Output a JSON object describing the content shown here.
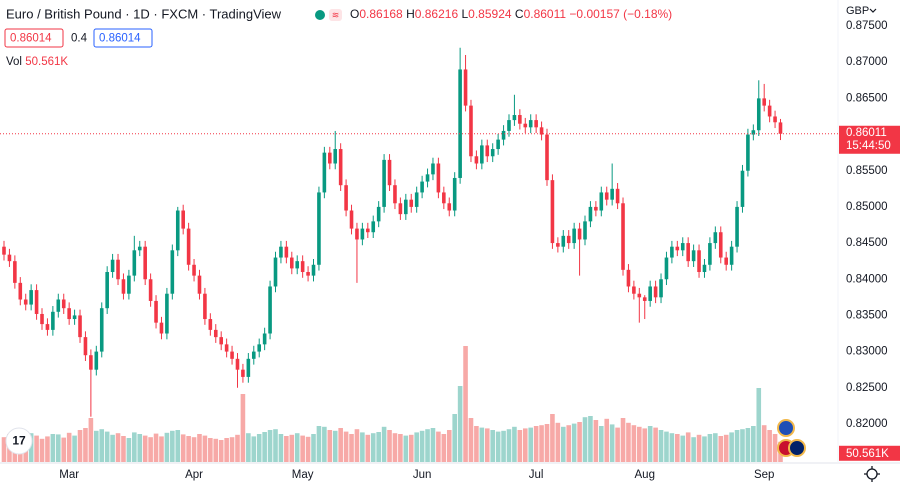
{
  "chart_data": {
    "type": "candlestick",
    "symbol_title": "Euro / British Pound · 1D · FXCM · TradingView",
    "ohlc_labels": [
      "O",
      "H",
      "L",
      "C"
    ],
    "change_label": "−0.00157 (−0.18%)",
    "indicator_values": [
      "0.86014",
      "0.4",
      "0.86014"
    ],
    "volume_name": "Vol",
    "last_volume_label": "50.561K",
    "currency": "GBP",
    "countdown": "15:44:50",
    "up_color": "#089981",
    "down_color": "#f23645",
    "volume_up_color": "#9dd5cd",
    "volume_down_color": "#f7a9a7",
    "grid": false,
    "ylim": [
      0.8146,
      0.8786
    ],
    "yticks": [
      {
        "value": 0.875,
        "label": "0.87500"
      },
      {
        "value": 0.87,
        "label": "0.87000"
      },
      {
        "value": 0.865,
        "label": "0.86500"
      },
      {
        "value": 0.86,
        "label": "0.86000"
      },
      {
        "value": 0.855,
        "label": "0.85500"
      },
      {
        "value": 0.85,
        "label": "0.85000"
      },
      {
        "value": 0.845,
        "label": "0.84500"
      },
      {
        "value": 0.84,
        "label": "0.84000"
      },
      {
        "value": 0.835,
        "label": "0.83500"
      },
      {
        "value": 0.83,
        "label": "0.83000"
      },
      {
        "value": 0.825,
        "label": "0.82500"
      },
      {
        "value": 0.82,
        "label": "0.82000"
      }
    ],
    "volume_ylim": [
      0,
      300000
    ],
    "categories": [
      null,
      null,
      null,
      null,
      null,
      null,
      null,
      null,
      null,
      null,
      null,
      null,
      "Mar",
      null,
      null,
      null,
      null,
      null,
      null,
      null,
      null,
      null,
      null,
      null,
      null,
      null,
      null,
      null,
      null,
      null,
      null,
      null,
      null,
      null,
      null,
      "Apr",
      null,
      null,
      null,
      null,
      null,
      null,
      null,
      null,
      null,
      null,
      null,
      null,
      null,
      null,
      null,
      null,
      null,
      null,
      null,
      "May",
      null,
      null,
      null,
      null,
      null,
      null,
      null,
      null,
      null,
      null,
      null,
      null,
      null,
      null,
      null,
      null,
      null,
      null,
      null,
      null,
      null,
      "Jun",
      null,
      null,
      null,
      null,
      null,
      null,
      null,
      null,
      null,
      null,
      null,
      null,
      null,
      null,
      null,
      null,
      null,
      null,
      null,
      null,
      "Jul",
      null,
      null,
      null,
      null,
      null,
      null,
      null,
      null,
      null,
      null,
      null,
      null,
      null,
      null,
      null,
      null,
      null,
      null,
      null,
      "Aug",
      null,
      null,
      null,
      null,
      null,
      null,
      null,
      null,
      null,
      null,
      null,
      null,
      null,
      null,
      null,
      null,
      null,
      null,
      null,
      null,
      null,
      "Sep",
      null,
      null,
      null
    ],
    "open": [
      0.8445,
      0.8434,
      0.8425,
      0.8395,
      0.8372,
      0.8365,
      0.8385,
      0.8352,
      0.8338,
      0.833,
      0.8355,
      0.8372,
      0.836,
      0.8345,
      0.835,
      0.832,
      0.8295,
      0.8275,
      0.83,
      0.836,
      0.841,
      0.8427,
      0.84,
      0.838,
      0.8405,
      0.844,
      0.8445,
      0.84,
      0.837,
      0.834,
      0.8325,
      0.838,
      0.844,
      0.8495,
      0.847,
      0.842,
      0.8405,
      0.838,
      0.8345,
      0.833,
      0.832,
      0.831,
      0.83,
      0.829,
      0.8275,
      0.8265,
      0.829,
      0.83,
      0.831,
      0.8325,
      0.839,
      0.843,
      0.8445,
      0.843,
      0.8415,
      0.8425,
      0.841,
      0.8405,
      0.842,
      0.852,
      0.8575,
      0.856,
      0.858,
      0.853,
      0.8495,
      0.847,
      0.8455,
      0.847,
      0.8465,
      0.848,
      0.85,
      0.8565,
      0.853,
      0.8505,
      0.849,
      0.851,
      0.85,
      0.852,
      0.8535,
      0.8545,
      0.856,
      0.852,
      0.8505,
      0.8495,
      0.854,
      0.869,
      0.864,
      0.857,
      0.856,
      0.8585,
      0.857,
      0.858,
      0.8593,
      0.8605,
      0.862,
      0.8627,
      0.8615,
      0.861,
      0.862,
      0.861,
      0.86,
      0.8537,
      0.845,
      0.8445,
      0.846,
      0.845,
      0.847,
      0.8455,
      0.848,
      0.85,
      0.8495,
      0.852,
      0.851,
      0.8525,
      0.8505,
      0.8413,
      0.839,
      0.838,
      0.8375,
      0.837,
      0.839,
      0.8375,
      0.84,
      0.843,
      0.8445,
      0.844,
      0.845,
      0.8425,
      0.844,
      0.841,
      0.842,
      0.845,
      0.8465,
      0.843,
      0.842,
      0.8445,
      0.85,
      0.855,
      0.86,
      0.8606,
      0.865,
      0.864,
      0.8625,
      0.86168
    ],
    "high": [
      0.8453,
      0.8442,
      0.8433,
      0.8403,
      0.838,
      0.8393,
      0.8393,
      0.836,
      0.8346,
      0.8363,
      0.838,
      0.838,
      0.8368,
      0.8358,
      0.8358,
      0.8328,
      0.8303,
      0.8308,
      0.8368,
      0.8418,
      0.8435,
      0.8435,
      0.8408,
      0.8413,
      0.846,
      0.8453,
      0.8453,
      0.8408,
      0.8378,
      0.8348,
      0.8388,
      0.8448,
      0.85,
      0.8503,
      0.8478,
      0.8428,
      0.8413,
      0.8388,
      0.8353,
      0.8338,
      0.8328,
      0.8318,
      0.8308,
      0.8298,
      0.8283,
      0.8298,
      0.8308,
      0.8318,
      0.8333,
      0.8398,
      0.8438,
      0.8453,
      0.8453,
      0.8438,
      0.8433,
      0.8433,
      0.8418,
      0.8428,
      0.8528,
      0.8583,
      0.8583,
      0.8605,
      0.8588,
      0.8538,
      0.8503,
      0.8478,
      0.8478,
      0.8478,
      0.8488,
      0.8508,
      0.8573,
      0.8573,
      0.8538,
      0.8513,
      0.8518,
      0.8518,
      0.8528,
      0.8543,
      0.8553,
      0.8568,
      0.8568,
      0.8528,
      0.8513,
      0.8548,
      0.872,
      0.871,
      0.8648,
      0.8578,
      0.8593,
      0.8593,
      0.8588,
      0.8601,
      0.8613,
      0.8628,
      0.8655,
      0.8635,
      0.8623,
      0.8628,
      0.8628,
      0.8618,
      0.8608,
      0.8545,
      0.8458,
      0.8468,
      0.8468,
      0.8478,
      0.8478,
      0.8488,
      0.8508,
      0.8508,
      0.8528,
      0.8528,
      0.856,
      0.8533,
      0.8513,
      0.8421,
      0.8398,
      0.8388,
      0.8378,
      0.8398,
      0.8398,
      0.8408,
      0.8438,
      0.8453,
      0.8453,
      0.8458,
      0.8458,
      0.8448,
      0.8448,
      0.8428,
      0.8458,
      0.8473,
      0.8473,
      0.8438,
      0.8453,
      0.8508,
      0.8558,
      0.8608,
      0.8614,
      0.8675,
      0.867,
      0.8648,
      0.8633,
      0.86216
    ],
    "low": [
      0.8426,
      0.8417,
      0.8387,
      0.8364,
      0.8357,
      0.8357,
      0.8344,
      0.833,
      0.8322,
      0.8322,
      0.8347,
      0.8352,
      0.8337,
      0.8337,
      0.8312,
      0.8287,
      0.821,
      0.8267,
      0.8292,
      0.8352,
      0.8402,
      0.8392,
      0.8372,
      0.8372,
      0.8397,
      0.8432,
      0.8392,
      0.8362,
      0.8332,
      0.8317,
      0.8317,
      0.8372,
      0.8432,
      0.8462,
      0.8412,
      0.8397,
      0.8372,
      0.8337,
      0.8322,
      0.8312,
      0.8302,
      0.8292,
      0.8282,
      0.825,
      0.8257,
      0.8257,
      0.8282,
      0.8292,
      0.8302,
      0.8317,
      0.8382,
      0.8422,
      0.8422,
      0.8407,
      0.8407,
      0.8402,
      0.8397,
      0.8397,
      0.8412,
      0.8512,
      0.8552,
      0.8552,
      0.8522,
      0.8487,
      0.8462,
      0.8395,
      0.8447,
      0.8457,
      0.8457,
      0.8472,
      0.8492,
      0.8522,
      0.8497,
      0.8482,
      0.8482,
      0.8492,
      0.8492,
      0.8512,
      0.8527,
      0.8537,
      0.8512,
      0.8497,
      0.8487,
      0.8487,
      0.8532,
      0.8632,
      0.8562,
      0.8552,
      0.8552,
      0.8562,
      0.8562,
      0.8572,
      0.8585,
      0.8597,
      0.8612,
      0.8607,
      0.8602,
      0.8602,
      0.8602,
      0.8592,
      0.8529,
      0.8442,
      0.8437,
      0.8437,
      0.8442,
      0.8442,
      0.8405,
      0.8447,
      0.8472,
      0.8487,
      0.8487,
      0.8502,
      0.8502,
      0.8497,
      0.8405,
      0.8382,
      0.8372,
      0.834,
      0.8345,
      0.8362,
      0.8367,
      0.8367,
      0.8392,
      0.8422,
      0.8432,
      0.8432,
      0.8417,
      0.8417,
      0.8402,
      0.8402,
      0.8412,
      0.8442,
      0.8422,
      0.8412,
      0.8412,
      0.8437,
      0.8492,
      0.8542,
      0.8592,
      0.8598,
      0.8632,
      0.8617,
      0.8609,
      0.85924
    ],
    "close": [
      0.8434,
      0.8425,
      0.8395,
      0.8372,
      0.8365,
      0.8385,
      0.8352,
      0.8338,
      0.833,
      0.8355,
      0.8372,
      0.836,
      0.8345,
      0.835,
      0.832,
      0.8295,
      0.8275,
      0.83,
      0.836,
      0.841,
      0.8427,
      0.84,
      0.838,
      0.8405,
      0.844,
      0.8445,
      0.84,
      0.837,
      0.834,
      0.8325,
      0.838,
      0.844,
      0.8495,
      0.847,
      0.842,
      0.8405,
      0.838,
      0.8345,
      0.833,
      0.832,
      0.831,
      0.83,
      0.829,
      0.8275,
      0.8265,
      0.829,
      0.83,
      0.831,
      0.8325,
      0.839,
      0.843,
      0.8445,
      0.843,
      0.8415,
      0.8425,
      0.841,
      0.8405,
      0.842,
      0.852,
      0.8575,
      0.856,
      0.858,
      0.853,
      0.8495,
      0.847,
      0.8455,
      0.847,
      0.8465,
      0.848,
      0.85,
      0.8565,
      0.853,
      0.8505,
      0.849,
      0.851,
      0.85,
      0.852,
      0.8535,
      0.8545,
      0.856,
      0.852,
      0.8505,
      0.8495,
      0.854,
      0.869,
      0.864,
      0.857,
      0.856,
      0.8585,
      0.857,
      0.858,
      0.8593,
      0.8605,
      0.862,
      0.8627,
      0.8615,
      0.861,
      0.862,
      0.861,
      0.86,
      0.8537,
      0.845,
      0.8445,
      0.846,
      0.845,
      0.847,
      0.8455,
      0.848,
      0.85,
      0.8495,
      0.852,
      0.851,
      0.8525,
      0.8505,
      0.8413,
      0.839,
      0.838,
      0.8375,
      0.837,
      0.839,
      0.8375,
      0.84,
      0.843,
      0.8445,
      0.844,
      0.845,
      0.8425,
      0.844,
      0.841,
      0.842,
      0.845,
      0.8465,
      0.843,
      0.842,
      0.8445,
      0.85,
      0.855,
      0.86,
      0.8606,
      0.865,
      0.864,
      0.8625,
      0.8617,
      0.86011
    ],
    "volume": [
      62000,
      70000,
      68000,
      75000,
      60000,
      72000,
      66000,
      58000,
      64000,
      70000,
      69000,
      61000,
      73000,
      66000,
      80000,
      85000,
      110000,
      78000,
      82000,
      76000,
      68000,
      72000,
      65000,
      60000,
      74000,
      70000,
      66000,
      62000,
      71000,
      64000,
      73000,
      78000,
      80000,
      69000,
      65000,
      62000,
      70000,
      66000,
      60000,
      58000,
      55000,
      60000,
      62000,
      68000,
      170000,
      72000,
      64000,
      70000,
      75000,
      80000,
      82000,
      70000,
      65000,
      68000,
      72000,
      66000,
      63000,
      70000,
      90000,
      88000,
      80000,
      78000,
      85000,
      76000,
      70000,
      82000,
      74000,
      68000,
      72000,
      75000,
      88000,
      80000,
      72000,
      70000,
      66000,
      68000,
      74000,
      78000,
      82000,
      85000,
      76000,
      70000,
      80000,
      120000,
      190000,
      290000,
      110000,
      90000,
      86000,
      84000,
      80000,
      76000,
      78000,
      82000,
      88000,
      80000,
      84000,
      86000,
      90000,
      92000,
      95000,
      120000,
      98000,
      88000,
      92000,
      96000,
      100000,
      112000,
      115000,
      105000,
      90000,
      108000,
      94000,
      86000,
      110000,
      98000,
      92000,
      88000,
      84000,
      90000,
      86000,
      80000,
      76000,
      72000,
      70000,
      66000,
      74000,
      62000,
      68000,
      64000,
      70000,
      72000,
      65000,
      68000,
      74000,
      80000,
      82000,
      85000,
      90000,
      185000,
      92000,
      80000,
      70000,
      50561
    ]
  }
}
